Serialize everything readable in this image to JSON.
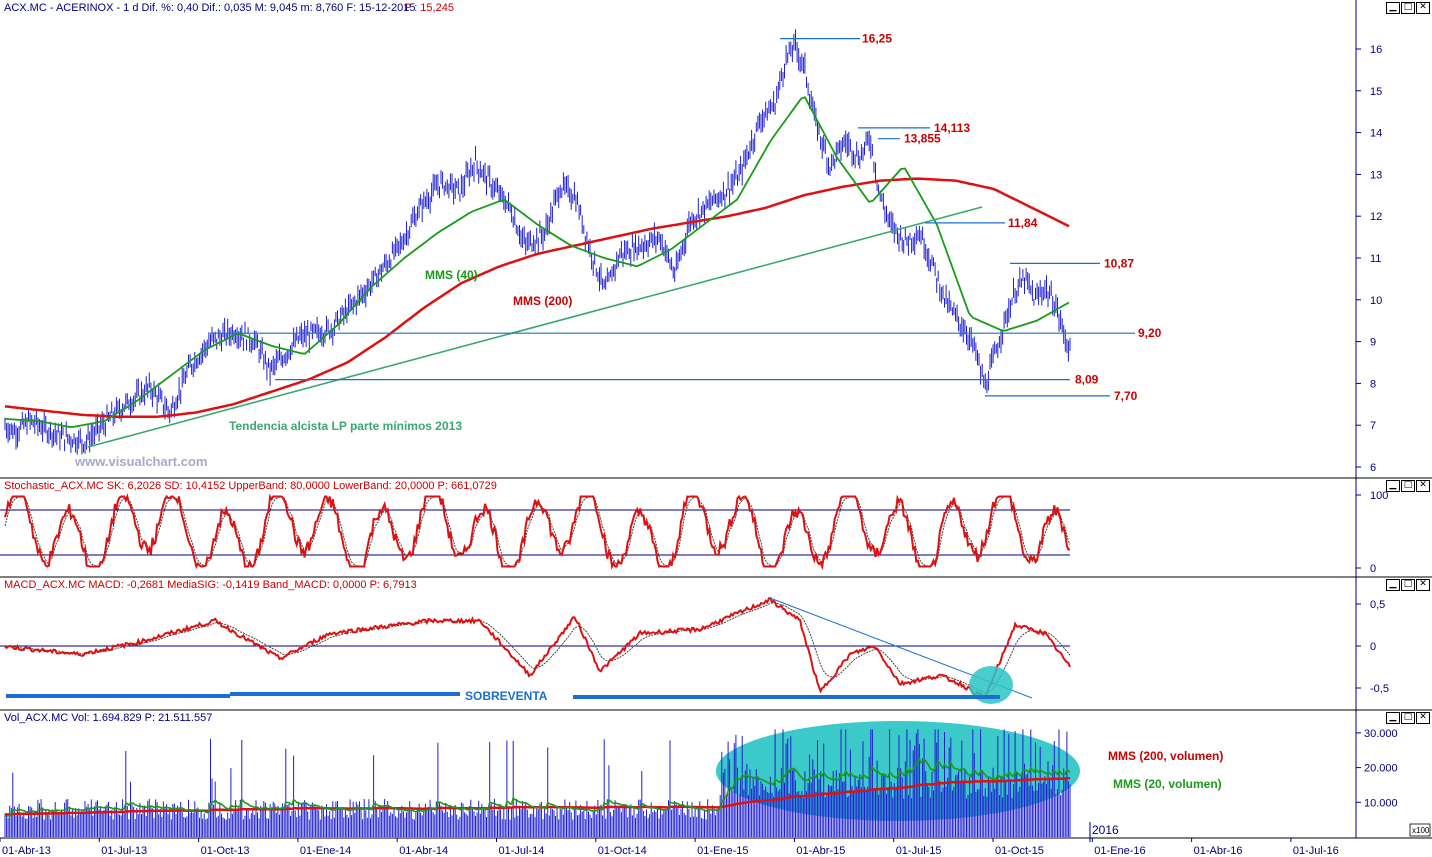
{
  "panels": {
    "price": {
      "header": "ACX.MC - ACERINOX - 1 d Dif. %: 0,40 Dif.: 0,035 M: 9,045 m: 8,760 F: 15-12-2015",
      "header_p": "P : 15,245",
      "watermark": "www.visualchart.com"
    },
    "stochastic": {
      "header": "Stochastic_ACX.MC SK: 6,2026 SD: 10,4152 UpperBand: 80,0000 LowerBand: 20,0000 P: 661,0729"
    },
    "macd": {
      "header": "MACD_ACX.MC MACD: -0,2681 MediaSIG: -0,1419 Band_MACD: 0,0000 P: 6,7913"
    },
    "volume": {
      "header": "Vol_ACX.MC Vol: 1.694.829 P: 21.511.557",
      "scale_suffix": "x100"
    }
  },
  "chart_data": [
    {
      "type": "line",
      "panel": "price",
      "x_tick_labels": [
        "01-Abr-13",
        "01-Jul-13",
        "01-Oct-13",
        "01-Ene-14",
        "01-Abr-14",
        "01-Jul-14",
        "01-Oct-14",
        "01-Ene-15",
        "01-Abr-15",
        "01-Jul-15",
        "01-Oct-15",
        "01-Ene-16",
        "01-Abr-16",
        "01-Jul-16"
      ],
      "year_label": "2016",
      "y_ticks": [
        "6",
        "7",
        "8",
        "9",
        "10",
        "11",
        "12",
        "13",
        "14",
        "15",
        "16"
      ],
      "ylim": [
        5.8,
        16.6
      ],
      "series": [
        {
          "name": "MMS (40)",
          "color": "#1a9b1a",
          "values": [
            7.15,
            7.1,
            6.95,
            7.1,
            7.6,
            8.2,
            8.8,
            9.2,
            8.9,
            8.7,
            9.4,
            10.3,
            11.0,
            11.6,
            12.1,
            12.4,
            11.8,
            11.3,
            11.0,
            10.8,
            11.2,
            11.8,
            12.4,
            13.8,
            14.9,
            13.4,
            12.3,
            13.2,
            11.8,
            9.6,
            9.25,
            9.5,
            9.95
          ]
        },
        {
          "name": "MMS (200)",
          "color": "#dd1111",
          "values": [
            7.45,
            7.35,
            7.25,
            7.2,
            7.2,
            7.3,
            7.5,
            7.8,
            8.1,
            8.5,
            9.1,
            9.8,
            10.4,
            10.8,
            11.1,
            11.3,
            11.5,
            11.7,
            11.85,
            12.0,
            12.2,
            12.5,
            12.7,
            12.85,
            12.9,
            12.85,
            12.65,
            12.2,
            11.75
          ]
        }
      ],
      "levels": [
        "16,25",
        "14,113",
        "13,855",
        "11,84",
        "10,87",
        "9,20",
        "8,09",
        "7,70"
      ],
      "annotations": [
        "MMS (40)",
        "MMS (200)",
        "Tendencia alcista LP parte mínimos 2013"
      ]
    },
    {
      "type": "line",
      "panel": "stochastic",
      "y_ticks": [
        "100",
        "0"
      ],
      "ylim": [
        0,
        100
      ],
      "bands": [
        20,
        80
      ]
    },
    {
      "type": "line",
      "panel": "macd",
      "y_ticks": [
        "0,5",
        "0",
        "-0,5"
      ],
      "ylim": [
        -0.75,
        0.6
      ],
      "annotations": [
        "SOBREVENTA"
      ]
    },
    {
      "type": "bar",
      "panel": "volume",
      "y_ticks": [
        "30.000",
        "20.000",
        "10.000"
      ],
      "ylim": [
        0,
        32000
      ],
      "series": [
        {
          "name": "MMS (200, volumen)",
          "color": "#dd1111"
        },
        {
          "name": "MMS (20, volumen)",
          "color": "#1a9b1a"
        }
      ]
    }
  ],
  "colors": {
    "price_bars": "#1f1fd0",
    "axis": "#000080",
    "level_line": "#1a6fd0",
    "trend": "#3aa870",
    "highlight": "#2bc4c4",
    "level_text": "#cc0000"
  }
}
